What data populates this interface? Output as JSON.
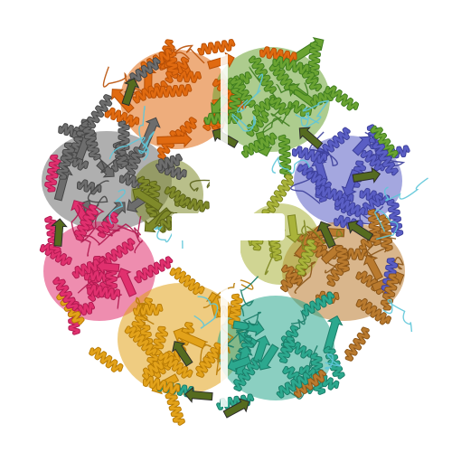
{
  "image": {
    "subject": "protein-assembly-ribbon",
    "background": "#ffffff"
  },
  "subunits": [
    {
      "id": "top-left",
      "color": "#e06a10",
      "shade": "#b84f05"
    },
    {
      "id": "top-right",
      "color": "#6aa332",
      "shade": "#3f7d1f"
    },
    {
      "id": "upper-left",
      "color": "#6d6d6d",
      "shade": "#464646"
    },
    {
      "id": "upper-right",
      "color": "#5a5ec4",
      "shade": "#3c3f9a"
    },
    {
      "id": "lower-left",
      "color": "#e0306e",
      "shade": "#b01a50"
    },
    {
      "id": "lower-right",
      "color": "#b97a2e",
      "shade": "#8a5518"
    },
    {
      "id": "bottom-left",
      "color": "#e2a21a",
      "shade": "#b87b05"
    },
    {
      "id": "bottom-right",
      "color": "#2ca88e",
      "shade": "#1a7c68"
    },
    {
      "id": "center-left",
      "color": "#7f8a2a",
      "shade": "#5a6218"
    },
    {
      "id": "center-right",
      "color": "#a9b33a",
      "shade": "#7c8520"
    }
  ],
  "accents": {
    "cyan": "#5fc6d9",
    "olive": "#556b1f",
    "dark": "#2c2c2c"
  }
}
